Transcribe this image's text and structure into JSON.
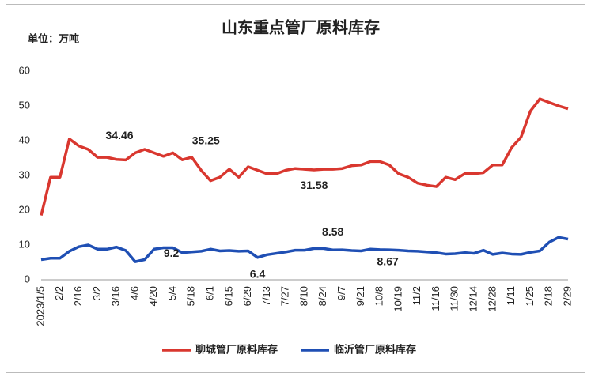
{
  "chart_data": {
    "type": "line",
    "title": "山东重点管厂原料库存",
    "y_label": "单位：万吨",
    "categories": [
      "2023/1/5",
      null,
      "2/2",
      null,
      "2/16",
      null,
      "3/2",
      null,
      "3/16",
      null,
      "4/6",
      null,
      "4/20",
      null,
      "5/4",
      null,
      "5/18",
      null,
      "6/1",
      null,
      "6/15",
      null,
      "6/29",
      null,
      "7/13",
      null,
      "7/27",
      null,
      "8/10",
      null,
      "8/24",
      null,
      "9/7",
      null,
      "9/21",
      null,
      "10/8",
      null,
      "10/19",
      null,
      "11/2",
      null,
      "11/16",
      null,
      "11/30",
      null,
      "12/14",
      null,
      "12/28",
      null,
      "1/11",
      null,
      "1/25",
      null,
      "2/18",
      null,
      "2/29"
    ],
    "series": [
      {
        "name": "聊城管厂原料库存",
        "color": "#d9372f",
        "values": [
          18.5,
          29.5,
          29.5,
          40.5,
          38.5,
          37.5,
          35.2,
          35.2,
          34.6,
          34.46,
          36.5,
          37.5,
          36.5,
          35.5,
          36.5,
          34.5,
          35.25,
          31.5,
          28.5,
          29.5,
          31.8,
          29.5,
          32.5,
          31.5,
          30.5,
          30.5,
          31.5,
          32,
          31.8,
          31.58,
          31.8,
          31.8,
          32,
          32.8,
          33,
          34,
          34,
          33,
          30.5,
          29.5,
          27.8,
          27.2,
          26.8,
          29.5,
          28.8,
          30.5,
          30.5,
          30.8,
          33,
          33,
          38,
          41,
          48.5,
          52,
          51,
          50,
          49.2
        ]
      },
      {
        "name": "临沂管厂原料库存",
        "color": "#1f4fb4",
        "values": [
          5.8,
          6.2,
          6.2,
          8.2,
          9.5,
          10,
          8.8,
          8.8,
          9.4,
          8.4,
          5.2,
          5.8,
          8.8,
          9.2,
          9.2,
          7.8,
          8,
          8.2,
          8.8,
          8.3,
          8.4,
          8.2,
          8.3,
          6.4,
          7.2,
          7.6,
          8,
          8.5,
          8.5,
          9,
          9,
          8.58,
          8.6,
          8.4,
          8.3,
          8.8,
          8.67,
          8.6,
          8.5,
          8.3,
          8.2,
          8,
          7.8,
          7.4,
          7.5,
          7.8,
          7.6,
          8.5,
          7.3,
          7.7,
          7.4,
          7.3,
          7.9,
          8.3,
          10.8,
          12.2,
          11.7
        ]
      }
    ],
    "ylim": [
      0,
      60
    ],
    "yticks": [
      0,
      10,
      20,
      30,
      40,
      50,
      60
    ],
    "grid": false,
    "legend": "bottom"
  }
}
